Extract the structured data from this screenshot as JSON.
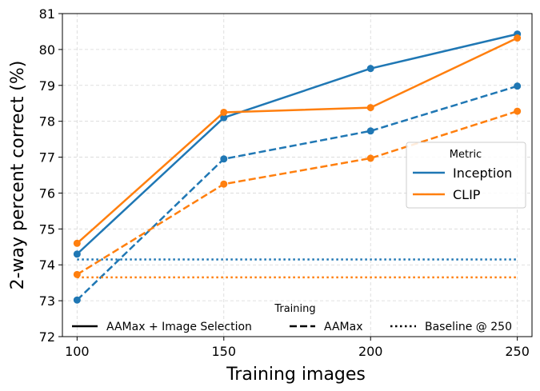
{
  "chart_data": {
    "type": "line",
    "title": "",
    "xlabel": "Training images",
    "ylabel": "2-way percent correct (%)",
    "x": [
      100,
      150,
      200,
      250
    ],
    "xticks": [
      "100",
      "150",
      "200",
      "250"
    ],
    "xlim": [
      95,
      255
    ],
    "ylim": [
      72,
      81
    ],
    "yticks": [
      "72",
      "73",
      "74",
      "75",
      "76",
      "77",
      "78",
      "79",
      "80",
      "81"
    ],
    "grid": true,
    "series": [
      {
        "name": "Inception",
        "training": "AAMax + Image Selection",
        "color": "#1f77b4",
        "style": "solid",
        "markers": true,
        "values": [
          74.3,
          78.1,
          79.47,
          80.43
        ]
      },
      {
        "name": "CLIP",
        "training": "AAMax + Image Selection",
        "color": "#ff7f0e",
        "style": "solid",
        "markers": true,
        "values": [
          74.6,
          78.25,
          78.38,
          80.32
        ]
      },
      {
        "name": "Inception",
        "training": "AAMax",
        "color": "#1f77b4",
        "style": "dashed",
        "markers": true,
        "values": [
          73.02,
          76.95,
          77.73,
          78.98
        ]
      },
      {
        "name": "CLIP",
        "training": "AAMax",
        "color": "#ff7f0e",
        "style": "dashed",
        "markers": true,
        "values": [
          73.73,
          76.25,
          76.97,
          78.28
        ]
      },
      {
        "name": "Inception",
        "training": "Baseline @ 250",
        "color": "#1f77b4",
        "style": "dotted",
        "markers": false,
        "values": [
          74.15,
          74.15,
          74.15,
          74.15
        ]
      },
      {
        "name": "CLIP",
        "training": "Baseline @ 250",
        "color": "#ff7f0e",
        "style": "dotted",
        "markers": false,
        "values": [
          73.65,
          73.65,
          73.65,
          73.65
        ]
      }
    ],
    "legend_metric": {
      "title": "Metric",
      "placement": "center-right",
      "entries": [
        {
          "label": "Inception",
          "color": "#1f77b4"
        },
        {
          "label": "CLIP",
          "color": "#ff7f0e"
        }
      ]
    },
    "legend_training": {
      "title": "Training",
      "placement": "bottom",
      "entries": [
        {
          "label": "AAMax + Image Selection",
          "style": "solid"
        },
        {
          "label": "AAMax",
          "style": "dashed"
        },
        {
          "label": "Baseline @ 250",
          "style": "dotted"
        }
      ]
    }
  }
}
